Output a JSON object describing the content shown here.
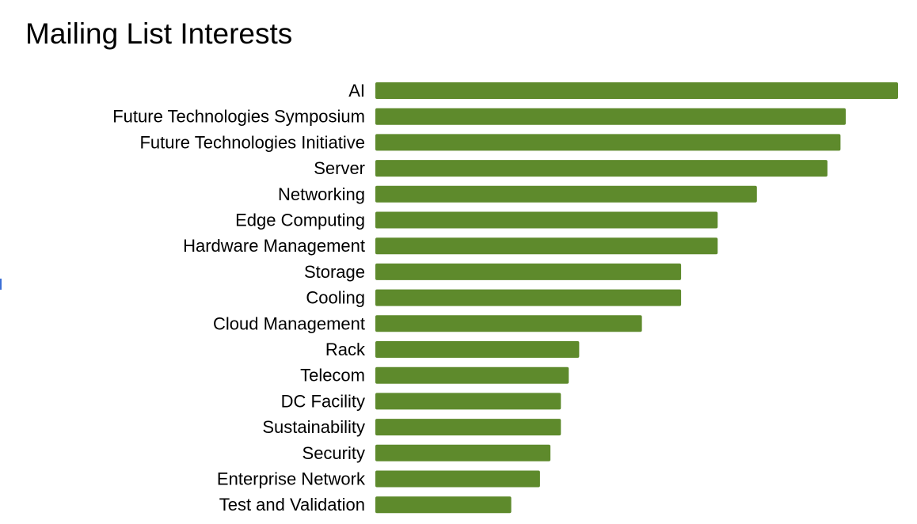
{
  "chart_data": {
    "type": "bar",
    "orientation": "horizontal",
    "title": "Mailing List Interests",
    "xlabel": "",
    "ylabel": "",
    "categories": [
      "AI",
      "Future Technologies Symposium",
      "Future Technologies Initiative",
      "Server",
      "Networking",
      "Edge Computing",
      "Hardware Management",
      "Storage",
      "Cooling",
      "Cloud Management",
      "Rack",
      "Telecom",
      "DC Facility",
      "Sustainability",
      "Security",
      "Enterprise Network",
      "Test and Validation"
    ],
    "values": [
      100,
      90,
      89,
      86.5,
      73,
      65.5,
      65.5,
      58.5,
      58.5,
      51,
      39,
      37,
      35.5,
      35.5,
      33.5,
      31.5,
      26
    ],
    "xlim": [
      0,
      100
    ],
    "grid": false,
    "legend": "none",
    "color": "#5e8a2c"
  }
}
